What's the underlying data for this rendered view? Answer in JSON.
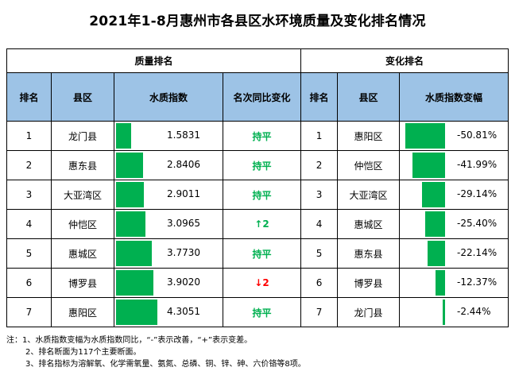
{
  "title": "2021年1-8月惠州市各县区水环境质量及变化排名情况",
  "groups": {
    "quality": "质量排名",
    "change": "变化排名"
  },
  "headers": {
    "rank": "排名",
    "district": "县区",
    "index": "水质指数",
    "yoy": "名次同比变化",
    "rank2": "排名",
    "district2": "县区",
    "delta": "水质指数变幅"
  },
  "quality_rows": [
    {
      "rank": "1",
      "district": "龙门县",
      "value": "1.5831",
      "index": 1.5831,
      "change": "持平",
      "dir": "flat"
    },
    {
      "rank": "2",
      "district": "惠东县",
      "value": "2.8406",
      "index": 2.8406,
      "change": "持平",
      "dir": "flat"
    },
    {
      "rank": "3",
      "district": "大亚湾区",
      "value": "2.9011",
      "index": 2.9011,
      "change": "持平",
      "dir": "flat"
    },
    {
      "rank": "4",
      "district": "仲恺区",
      "value": "3.0965",
      "index": 3.0965,
      "change": "↑2",
      "dir": "up"
    },
    {
      "rank": "5",
      "district": "惠城区",
      "value": "3.7730",
      "index": 3.773,
      "change": "持平",
      "dir": "flat"
    },
    {
      "rank": "6",
      "district": "博罗县",
      "value": "3.9020",
      "index": 3.902,
      "change": "↓2",
      "dir": "down"
    },
    {
      "rank": "7",
      "district": "惠阳区",
      "value": "4.3051",
      "index": 4.3051,
      "change": "持平",
      "dir": "flat"
    }
  ],
  "change_rows": [
    {
      "rank": "1",
      "district": "惠阳区",
      "value": "-50.81%",
      "pct": -50.81
    },
    {
      "rank": "2",
      "district": "仲恺区",
      "value": "-41.99%",
      "pct": -41.99
    },
    {
      "rank": "3",
      "district": "大亚湾区",
      "value": "-29.14%",
      "pct": -29.14
    },
    {
      "rank": "4",
      "district": "惠城区",
      "value": "-25.40%",
      "pct": -25.4
    },
    {
      "rank": "5",
      "district": "惠东县",
      "value": "-22.14%",
      "pct": -22.14
    },
    {
      "rank": "6",
      "district": "博罗县",
      "value": "-12.37%",
      "pct": -12.37
    },
    {
      "rank": "7",
      "district": "龙门县",
      "value": "-2.44%",
      "pct": -2.44
    }
  ],
  "colors": {
    "bar": "#00b050",
    "header_bg": "#9dc3e6",
    "up": "#00b050",
    "down": "#ff0000"
  },
  "notes": [
    "注：1、水质指数变幅为水质指数同比，“-”表示改善，“+”表示变差。",
    "2、排名断面为117个主要断面。",
    "3、排名指标为溶解氧、化学需氧量、氨氮、总磷、铜、锌、砷、六价铬等8项。"
  ]
}
